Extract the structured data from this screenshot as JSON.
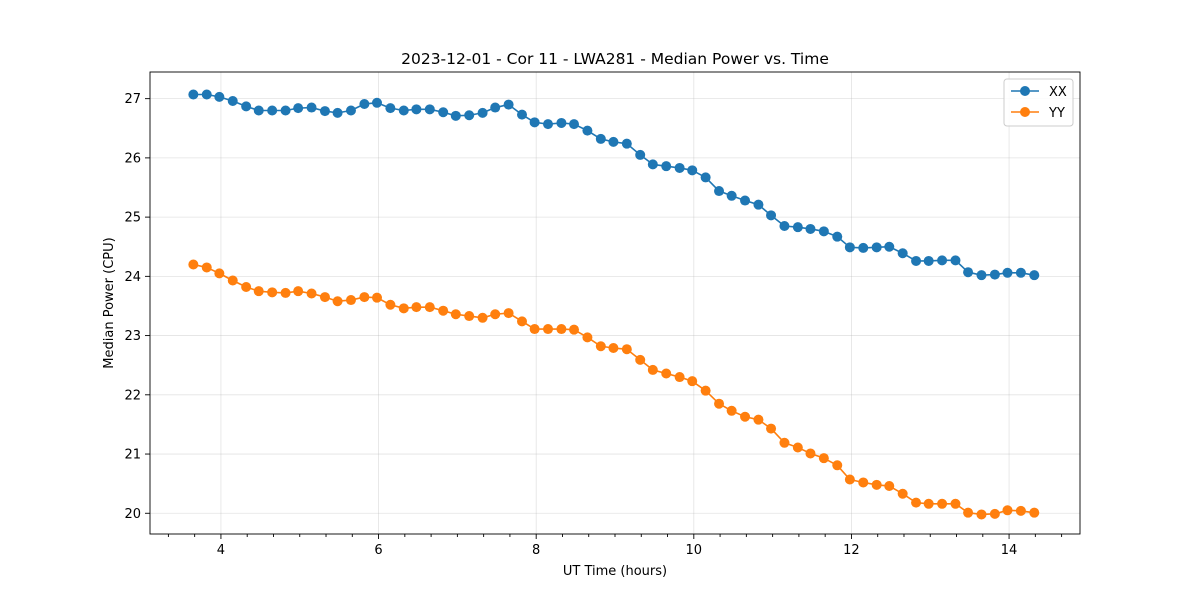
{
  "chart_data": {
    "type": "line",
    "title": "2023-12-01 - Cor 11 - LWA281 - Median Power vs. Time",
    "xlabel": "UT Time (hours)",
    "ylabel": "Median Power (CPU)",
    "xlim": [
      3.1,
      14.9
    ],
    "ylim": [
      19.65,
      27.45
    ],
    "xticks": [
      4,
      6,
      8,
      10,
      12,
      14
    ],
    "xtick_labels": [
      "4",
      "6",
      "8",
      "10",
      "12",
      "14"
    ],
    "x_minor_step": 0.333333,
    "yticks": [
      20,
      21,
      22,
      23,
      24,
      25,
      26,
      27
    ],
    "ytick_labels": [
      "20",
      "21",
      "22",
      "23",
      "24",
      "25",
      "26",
      "27"
    ],
    "grid": true,
    "legend_position": "top-right",
    "x": [
      3.65,
      3.82,
      3.98,
      4.15,
      4.32,
      4.48,
      4.65,
      4.82,
      4.98,
      5.15,
      5.32,
      5.48,
      5.65,
      5.82,
      5.98,
      6.15,
      6.32,
      6.48,
      6.65,
      6.82,
      6.98,
      7.15,
      7.32,
      7.48,
      7.65,
      7.82,
      7.98,
      8.15,
      8.32,
      8.48,
      8.65,
      8.82,
      8.98,
      9.15,
      9.32,
      9.48,
      9.65,
      9.82,
      9.98,
      10.15,
      10.32,
      10.48,
      10.65,
      10.82,
      10.98,
      11.15,
      11.32,
      11.48,
      11.65,
      11.82,
      11.98,
      12.15,
      12.32,
      12.48,
      12.65,
      12.82,
      12.98,
      13.15,
      13.32,
      13.48,
      13.65,
      13.82,
      13.98,
      14.15,
      14.32
    ],
    "series": [
      {
        "name": "XX",
        "color": "#1f77b4",
        "values": [
          27.07,
          27.07,
          27.03,
          26.96,
          26.87,
          26.8,
          26.8,
          26.8,
          26.84,
          26.85,
          26.79,
          26.76,
          26.8,
          26.91,
          26.93,
          26.84,
          26.8,
          26.82,
          26.82,
          26.77,
          26.71,
          26.72,
          26.76,
          26.85,
          26.9,
          26.73,
          26.6,
          26.57,
          26.59,
          26.57,
          26.46,
          26.32,
          26.27,
          26.24,
          26.05,
          25.89,
          25.86,
          25.83,
          25.79,
          25.67,
          25.44,
          25.36,
          25.28,
          25.21,
          25.03,
          24.85,
          24.83,
          24.8,
          24.76,
          24.67,
          24.49,
          24.48,
          24.49,
          24.5,
          24.39,
          24.26,
          24.26,
          24.27,
          24.27,
          24.07,
          24.02,
          24.03,
          24.06,
          24.06,
          24.02
        ]
      },
      {
        "name": "YY",
        "color": "#ff7f0e",
        "values": [
          24.2,
          24.15,
          24.05,
          23.93,
          23.82,
          23.75,
          23.73,
          23.72,
          23.75,
          23.71,
          23.65,
          23.58,
          23.6,
          23.65,
          23.64,
          23.52,
          23.46,
          23.48,
          23.48,
          23.42,
          23.36,
          23.33,
          23.3,
          23.36,
          23.38,
          23.24,
          23.11,
          23.11,
          23.11,
          23.1,
          22.97,
          22.82,
          22.79,
          22.77,
          22.59,
          22.42,
          22.36,
          22.3,
          22.23,
          22.07,
          21.85,
          21.73,
          21.63,
          21.58,
          21.43,
          21.19,
          21.11,
          21.01,
          20.93,
          20.81,
          20.57,
          20.52,
          20.48,
          20.46,
          20.33,
          20.18,
          20.16,
          20.16,
          20.16,
          20.01,
          19.98,
          19.99,
          20.05,
          20.04,
          20.01
        ]
      }
    ]
  }
}
